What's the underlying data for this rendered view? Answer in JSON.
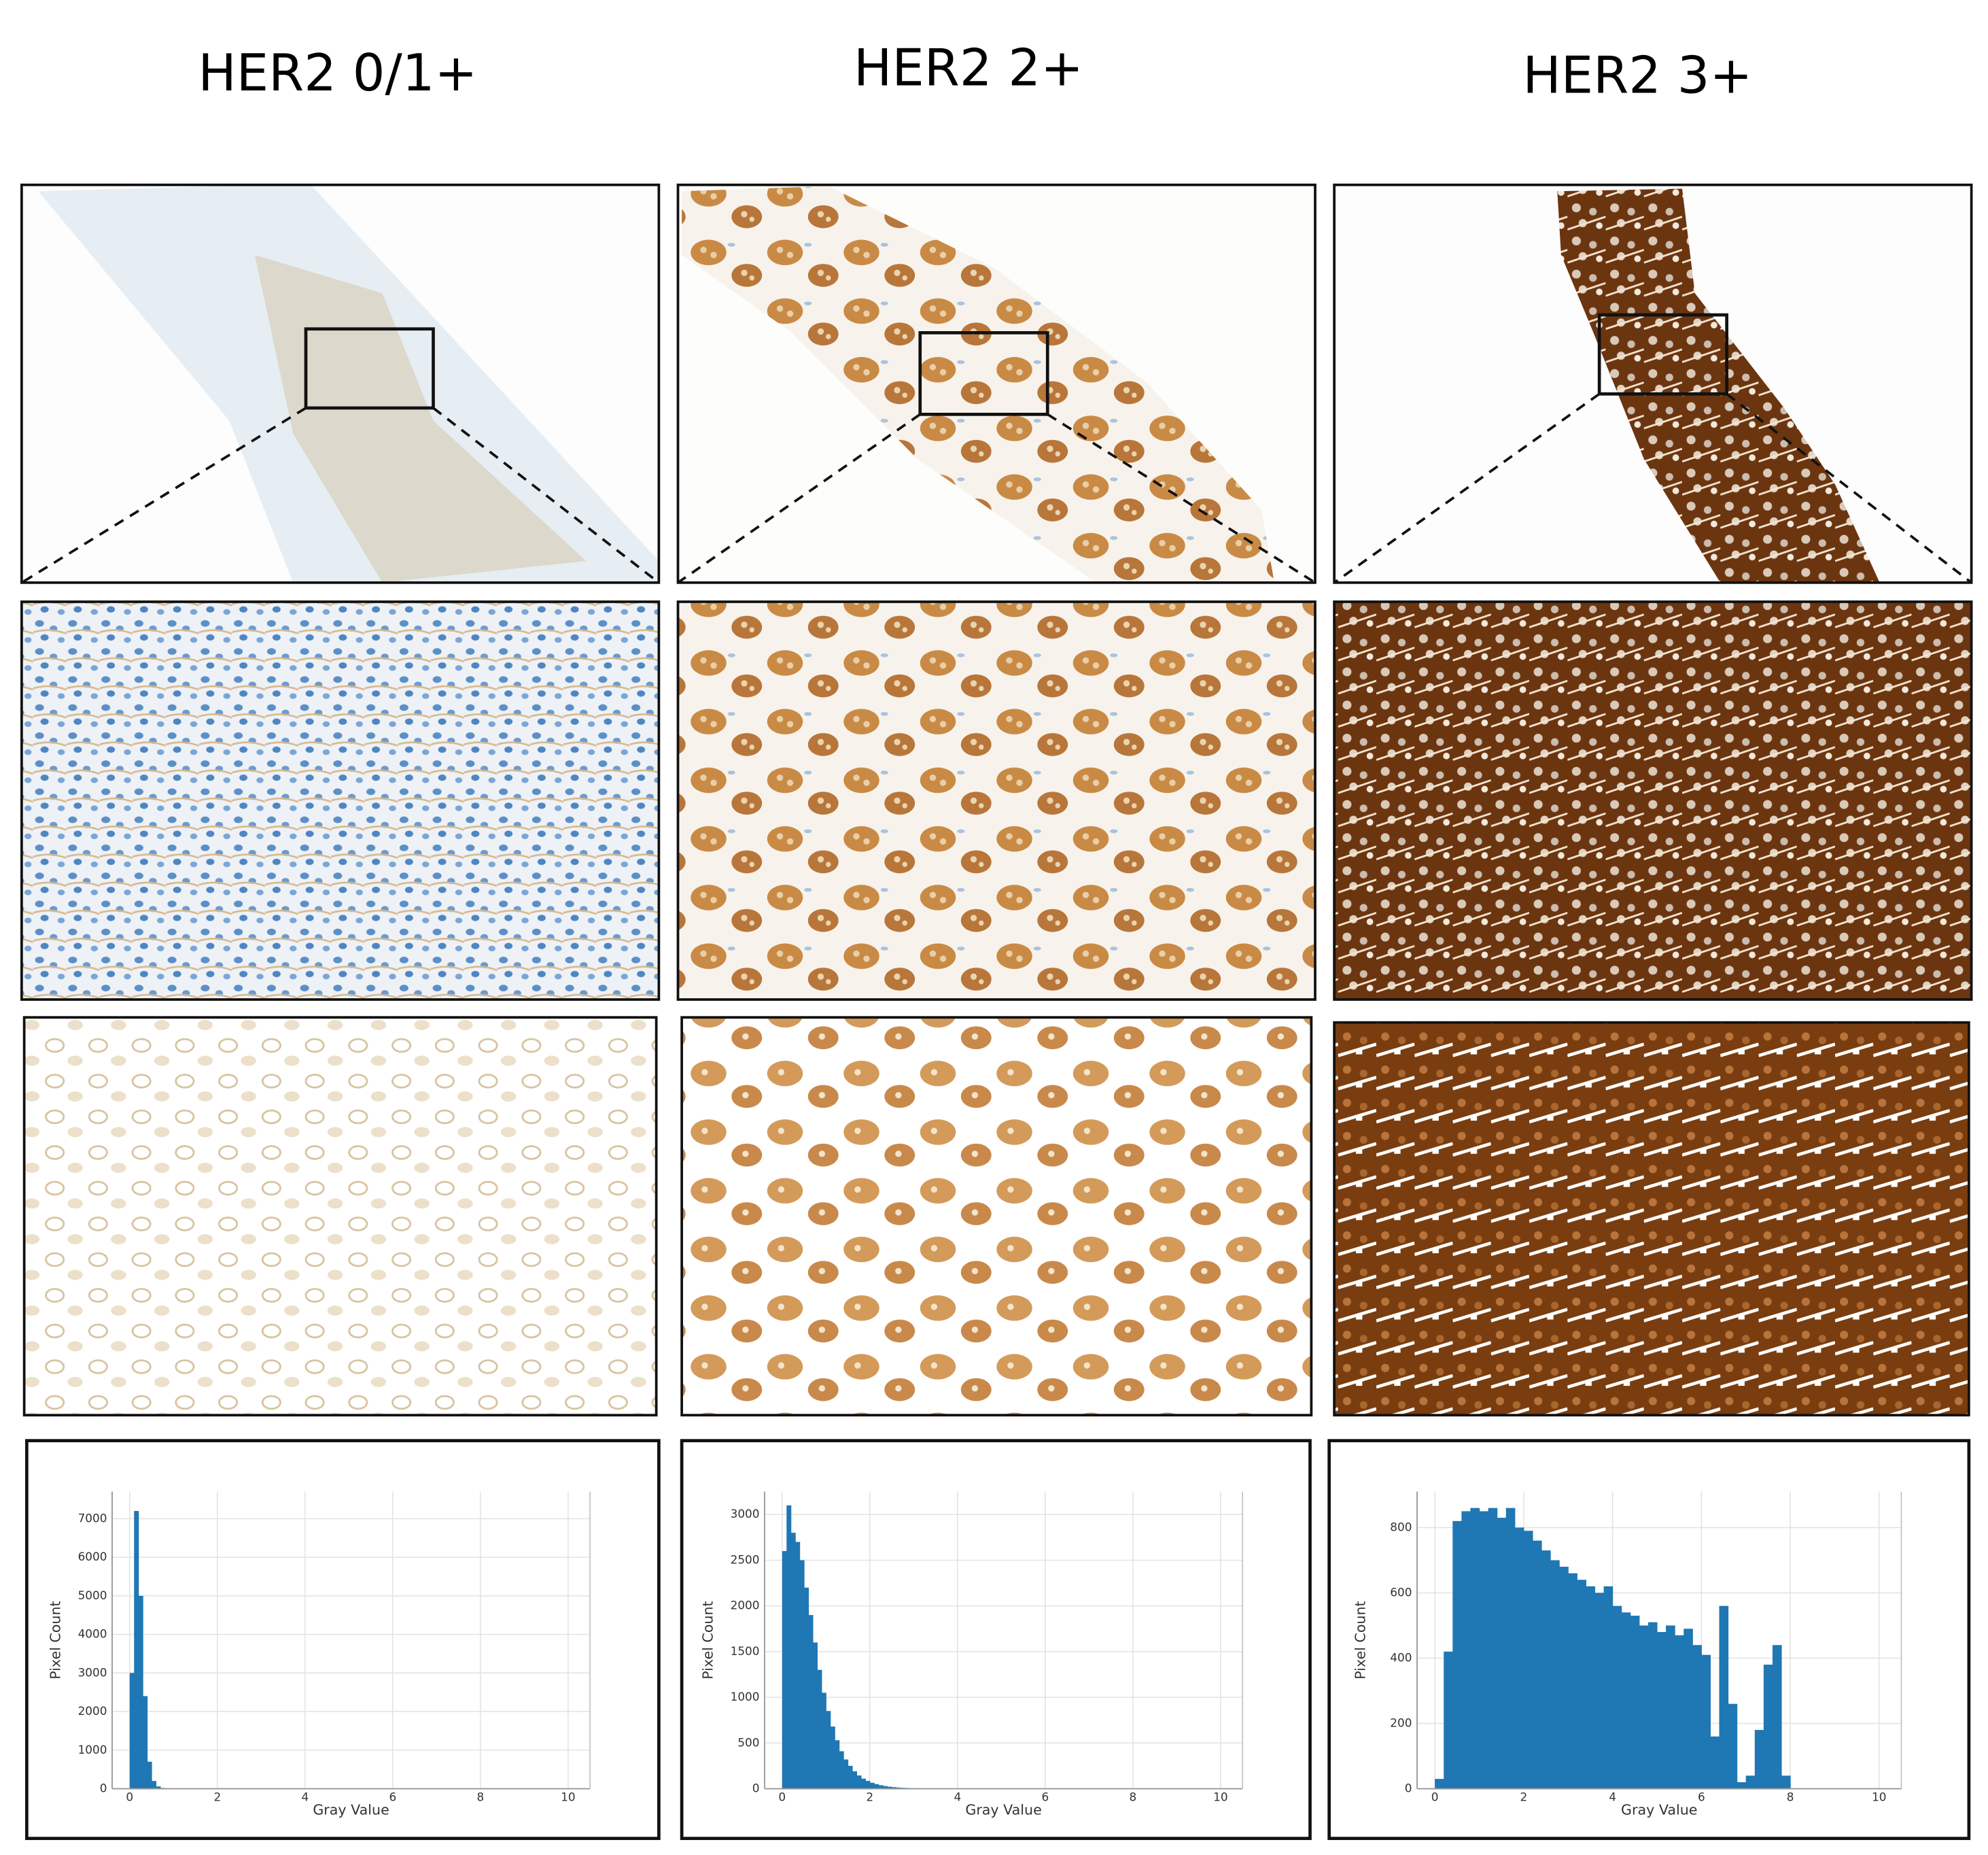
{
  "chart_data": [
    {
      "type": "histogram",
      "title": "HER2 0/1+",
      "xlabel": "Gray Value",
      "ylabel": "Pixel Count",
      "color": "#1f77b4",
      "grid": true,
      "bins": [
        0,
        0.1,
        0.2,
        0.3,
        0.4,
        0.5,
        0.6,
        0.7,
        0.8
      ],
      "values": [
        3000,
        7200,
        5000,
        2400,
        700,
        200,
        60,
        20
      ],
      "xlim": [
        -0.4,
        10.5
      ],
      "xticks": [
        0,
        2,
        4,
        6,
        8,
        10
      ],
      "ylim": [
        0,
        7700
      ],
      "yticks": [
        0,
        1000,
        2000,
        3000,
        4000,
        5000,
        6000,
        7000
      ]
    },
    {
      "type": "histogram",
      "title": "HER2 2+",
      "xlabel": "Gray Value",
      "ylabel": "Pixel Count",
      "color": "#1f77b4",
      "grid": true,
      "bins": [
        0,
        0.1,
        0.2,
        0.3,
        0.4,
        0.5,
        0.6,
        0.7,
        0.8,
        0.9,
        1.0,
        1.1,
        1.2,
        1.3,
        1.4,
        1.5,
        1.6,
        1.7,
        1.8,
        1.9,
        2.0,
        2.1,
        2.2,
        2.3,
        2.4,
        2.5,
        2.6,
        2.7,
        2.8,
        2.9,
        3.0,
        3.1,
        3.2,
        3.3,
        3.4,
        3.5
      ],
      "values": [
        2600,
        3100,
        2800,
        2700,
        2500,
        2200,
        1900,
        1600,
        1300,
        1050,
        850,
        680,
        530,
        410,
        320,
        250,
        190,
        145,
        110,
        85,
        65,
        50,
        38,
        29,
        22,
        17,
        13,
        10,
        8,
        6,
        5,
        4,
        3,
        2,
        2
      ],
      "xlim": [
        -0.4,
        10.5
      ],
      "xticks": [
        0,
        2,
        4,
        6,
        8,
        10
      ],
      "ylim": [
        0,
        3250
      ],
      "yticks": [
        0,
        500,
        1000,
        1500,
        2000,
        2500,
        3000
      ]
    },
    {
      "type": "histogram",
      "title": "HER2 3+",
      "xlabel": "Gray Value",
      "ylabel": "Pixel Count",
      "color": "#1f77b4",
      "grid": true,
      "bins": [
        0,
        0.2,
        0.4,
        0.6,
        0.8,
        1.0,
        1.2,
        1.4,
        1.6,
        1.8,
        2.0,
        2.2,
        2.4,
        2.6,
        2.8,
        3.0,
        3.2,
        3.4,
        3.6,
        3.8,
        4.0,
        4.2,
        4.4,
        4.6,
        4.8,
        5.0,
        5.2,
        5.4,
        5.6,
        5.8,
        6.0,
        6.2,
        6.4,
        6.6,
        6.8,
        7.0,
        7.2,
        7.4,
        7.6,
        7.8,
        8.0
      ],
      "values": [
        30,
        420,
        820,
        850,
        860,
        850,
        860,
        830,
        860,
        800,
        790,
        760,
        730,
        700,
        680,
        660,
        640,
        620,
        600,
        620,
        560,
        540,
        530,
        500,
        510,
        480,
        500,
        470,
        490,
        440,
        410,
        160,
        560,
        260,
        20,
        40,
        180,
        380,
        440,
        40
      ],
      "xlim": [
        -0.4,
        10.5
      ],
      "xticks": [
        0,
        2,
        4,
        6,
        8,
        10
      ],
      "ylim": [
        0,
        910
      ],
      "yticks": [
        0,
        200,
        400,
        600,
        800
      ]
    }
  ]
}
